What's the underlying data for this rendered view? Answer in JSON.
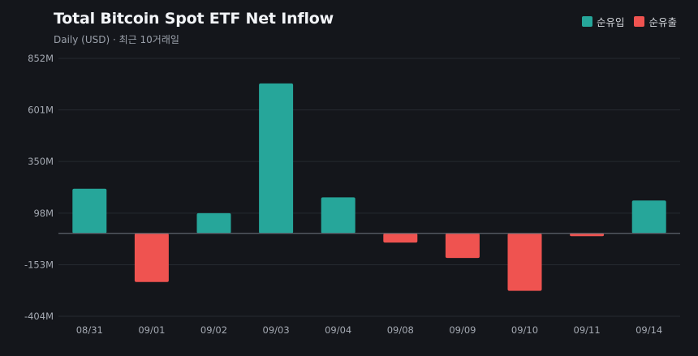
{
  "header": {
    "title": "Total Bitcoin Spot ETF Net Inflow",
    "subtitle": "Daily (USD) · 최근 10거래일"
  },
  "legend": [
    {
      "label": "순유입",
      "color": "#26a69a"
    },
    {
      "label": "순유출",
      "color": "#ef5350"
    }
  ],
  "chart_data": {
    "type": "bar",
    "title": "Total Bitcoin Spot ETF Net Inflow",
    "subtitle": "Daily (USD) · 최근 10거래일",
    "categories": [
      "08/31",
      "09/01",
      "09/02",
      "09/03",
      "09/04",
      "09/08",
      "09/09",
      "09/10",
      "09/11",
      "09/14"
    ],
    "values": [
      217,
      -237,
      98,
      730,
      175,
      -45,
      -120,
      -280,
      -14,
      160
    ],
    "unit": "USD (millions)",
    "ylim": [
      -404,
      852
    ],
    "yticks": [
      852,
      601,
      350,
      98,
      -153,
      -404
    ],
    "ytick_labels": [
      "852M",
      "601M",
      "350M",
      "98M",
      "-153M",
      "-404M"
    ],
    "positive_color": "#26a69a",
    "negative_color": "#ef5350",
    "grid": true,
    "legend_position": "top-right"
  }
}
